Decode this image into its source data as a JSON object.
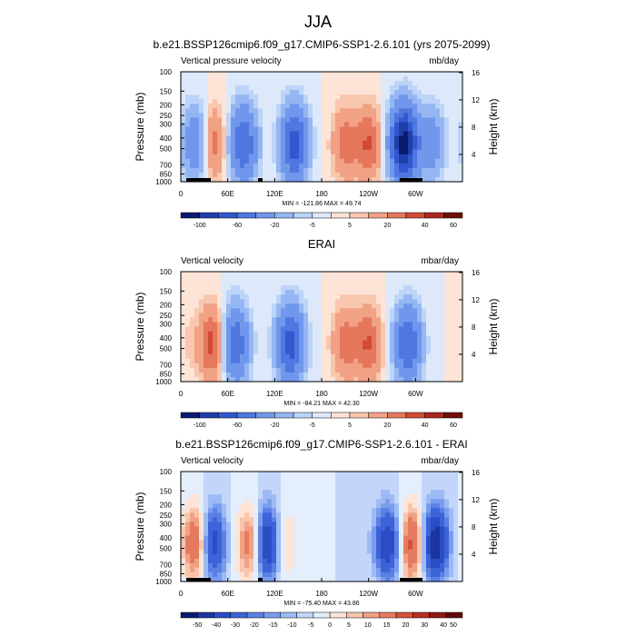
{
  "figure": {
    "title": "JJA"
  },
  "colorbar_fills": {
    "div12": [
      "#0b1a6e",
      "#1f3fa8",
      "#3258d0",
      "#4f77e0",
      "#7097ec",
      "#95b6f3",
      "#bcd4f8",
      "#dde9fb",
      "#fde4d6",
      "#f9c6ae",
      "#f1a184",
      "#e5775c",
      "#d24a34",
      "#a8281e",
      "#6e0f0c"
    ],
    "div16": [
      "#0b1a6e",
      "#1a35a0",
      "#2a4cc4",
      "#3d63d8",
      "#5a80e4",
      "#7a9cee",
      "#9dbaf4",
      "#c3d6f9",
      "#e4eefc",
      "#fde4d6",
      "#f8c4ab",
      "#f0a183",
      "#e57b5e",
      "#d6503a",
      "#bb2e22",
      "#8e1a13",
      "#5e0b08"
    ]
  },
  "panels": [
    {
      "title": "b.e21.BSSP126cmip6.f09_g17.CMIP6-SSP1-2.6.101 (yrs 2075-2099)",
      "left_label": "Vertical pressure velocity",
      "right_label": "mb/day",
      "stats": "MIN = -121.86  MAX = 49.74",
      "colorbar_labels": [
        "-100",
        "-60",
        "-20",
        "-5",
        "5",
        "20",
        "40",
        "60"
      ],
      "colorbar_fill_set": "div12",
      "terrain": true
    },
    {
      "title": "ERAI",
      "left_label": "Vertical velocity",
      "right_label": "mbar/day",
      "stats": "MIN = -84.21  MAX = 42.30",
      "colorbar_labels": [
        "-100",
        "-60",
        "-20",
        "-5",
        "5",
        "20",
        "40",
        "60"
      ],
      "colorbar_fill_set": "div12",
      "terrain": false
    },
    {
      "title": "b.e21.BSSP126cmip6.f09_g17.CMIP6-SSP1-2.6.101 - ERAI",
      "left_label": "Vertical velocity",
      "right_label": "mbar/day",
      "stats": "MIN = -75.40  MAX = 43.86",
      "colorbar_labels": [
        "-50",
        "-40",
        "-30",
        "-20",
        "-15",
        "-10",
        "-5",
        "0",
        "5",
        "10",
        "15",
        "20",
        "30",
        "40",
        "50"
      ],
      "colorbar_fill_set": "div16",
      "terrain": true
    }
  ],
  "chart_data": [
    {
      "type": "heatmap",
      "title": "b.e21.BSSP126cmip6.f09_g17.CMIP6-SSP1-2.6.101 (yrs 2075-2099)",
      "variable": "Vertical pressure velocity",
      "units": "mb/day",
      "ylabel": "Pressure (mb)",
      "ylabel_right": "Height (km)",
      "x_tick_labels": [
        "0",
        "60E",
        "120E",
        "180",
        "120W",
        "60W"
      ],
      "y_tick_labels": [
        "100",
        "150",
        "200",
        "250",
        "300",
        "400",
        "500",
        "700",
        "850",
        "1000"
      ],
      "y_right_tick_labels": [
        "4",
        "8",
        "12",
        "16"
      ],
      "log_pressure_axis": true,
      "min": -121.86,
      "max": 49.74,
      "contour_levels": [
        -100,
        -80,
        -60,
        -40,
        -20,
        -10,
        -5,
        0,
        5,
        10,
        20,
        30,
        40,
        50,
        60
      ],
      "features_lon_value": [
        {
          "lon": 20,
          "value": -40
        },
        {
          "lon": 40,
          "value": 30
        },
        {
          "lon": 80,
          "value": -60
        },
        {
          "lon": 145,
          "value": -70
        },
        {
          "lon": 210,
          "value": 25
        },
        {
          "lon": 240,
          "value": 30
        },
        {
          "lon": 285,
          "value": -110
        },
        {
          "lon": 320,
          "value": -30
        }
      ]
    },
    {
      "type": "heatmap",
      "title": "ERAI",
      "variable": "Vertical velocity",
      "units": "mbar/day",
      "ylabel": "Pressure (mb)",
      "ylabel_right": "Height (km)",
      "x_tick_labels": [
        "0",
        "60E",
        "120E",
        "180",
        "120W",
        "60W"
      ],
      "y_tick_labels": [
        "100",
        "150",
        "200",
        "250",
        "300",
        "400",
        "500",
        "700",
        "850",
        "1000"
      ],
      "y_right_tick_labels": [
        "4",
        "8",
        "12",
        "16"
      ],
      "log_pressure_axis": true,
      "min": -84.21,
      "max": 42.3,
      "contour_levels": [
        -100,
        -80,
        -60,
        -40,
        -20,
        -10,
        -5,
        0,
        5,
        10,
        20,
        30,
        40,
        50,
        60
      ],
      "features_lon_value": [
        {
          "lon": 10,
          "value": 5
        },
        {
          "lon": 40,
          "value": 35
        },
        {
          "lon": 70,
          "value": -55
        },
        {
          "lon": 140,
          "value": -70
        },
        {
          "lon": 210,
          "value": 25
        },
        {
          "lon": 240,
          "value": 30
        },
        {
          "lon": 290,
          "value": -60
        }
      ]
    },
    {
      "type": "heatmap",
      "title": "b.e21.BSSP126cmip6.f09_g17.CMIP6-SSP1-2.6.101 - ERAI",
      "variable": "Vertical velocity",
      "units": "mbar/day",
      "ylabel": "Pressure (mb)",
      "ylabel_right": "Height (km)",
      "x_tick_labels": [
        "0",
        "60E",
        "120E",
        "180",
        "120W",
        "60W"
      ],
      "y_tick_labels": [
        "100",
        "150",
        "200",
        "250",
        "300",
        "400",
        "500",
        "700",
        "850",
        "1000"
      ],
      "y_right_tick_labels": [
        "4",
        "8",
        "12",
        "16"
      ],
      "log_pressure_axis": true,
      "min": -75.4,
      "max": 43.86,
      "contour_levels": [
        -50,
        -40,
        -30,
        -20,
        -15,
        -10,
        -5,
        0,
        5,
        10,
        15,
        20,
        30,
        40,
        50
      ],
      "features_lon_value": [
        {
          "lon": 20,
          "value": 35
        },
        {
          "lon": 40,
          "value": -40
        },
        {
          "lon": 90,
          "value": 30
        },
        {
          "lon": 110,
          "value": -50
        },
        {
          "lon": 130,
          "value": 15
        },
        {
          "lon": 265,
          "value": -40
        },
        {
          "lon": 295,
          "value": 35
        },
        {
          "lon": 325,
          "value": -50
        }
      ]
    }
  ]
}
